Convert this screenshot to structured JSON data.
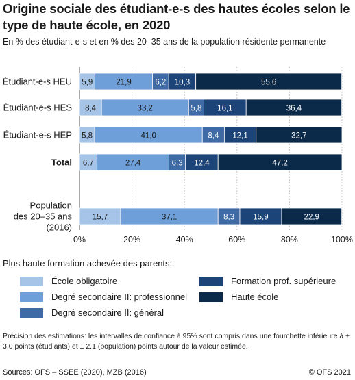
{
  "title": "Origine sociale des étudiant-e-s des hautes écoles selon le type de haute école, en 2020",
  "subtitle": "En % des étudiant-e-s et en % des 20–35 ans de la population résidente permanente",
  "legend_title": "Plus haute formation achevée des parents:",
  "note": "Précision des estimations: les intervalles de confiance à 95% sont compris dans une fourchette inférieure à ± 3.0 points (étudiants) et ± 2.1 (population) points autour de la valeur estimée.",
  "source": "Sources: OFS – SSEE (2020), MZB (2016)",
  "copyright": "© OFS 2021",
  "chart_data": {
    "type": "bar",
    "orientation": "horizontal",
    "stacked": true,
    "categories": [
      "Étudiant-e-s HEU",
      "Étudiant-e-s HES",
      "Étudiant-e-s HEP",
      "Total",
      "Population des 20–35 ans (2016)"
    ],
    "category_lines": [
      [
        "Étudiant-e-s HEU"
      ],
      [
        "Étudiant-e-s HES"
      ],
      [
        "Étudiant-e-s HEP"
      ],
      [
        "Total"
      ],
      [
        "Population",
        "des 20–35 ans",
        "(2016)"
      ]
    ],
    "bold_categories": [
      "Total"
    ],
    "series": [
      {
        "name": "École obligatoire",
        "color": "#a6c4e8",
        "values": [
          5.9,
          8.4,
          5.8,
          6.7,
          15.7
        ],
        "labels": [
          "5,9",
          "8,4",
          "5,8",
          "6,7",
          "15,7"
        ]
      },
      {
        "name": "Degré secondaire II: professionnel",
        "color": "#6f9fd8",
        "values": [
          21.9,
          33.2,
          41.0,
          27.4,
          37.1
        ],
        "labels": [
          "21,9",
          "33,2",
          "41,0",
          "27,4",
          "37,1"
        ]
      },
      {
        "name": "Degré secondaire II: général",
        "color": "#3e6aa6",
        "values": [
          6.2,
          5.8,
          8.4,
          6.3,
          8.3
        ],
        "labels": [
          "6,2",
          "5,8",
          "8,4",
          "6,3",
          "8,3"
        ]
      },
      {
        "name": "Formation prof. supérieure",
        "color": "#1c4478",
        "values": [
          10.3,
          16.1,
          12.1,
          12.4,
          15.9
        ],
        "labels": [
          "10,3",
          "16,1",
          "12,1",
          "12,4",
          "15,9"
        ]
      },
      {
        "name": "Haute école",
        "color": "#0b2a4a",
        "values": [
          55.6,
          36.4,
          32.7,
          47.2,
          22.9
        ],
        "labels": [
          "55,6",
          "36,4",
          "32,7",
          "47,2",
          "22,9"
        ]
      }
    ],
    "xlim": [
      0,
      100
    ],
    "x_ticks": [
      "0%",
      "20%",
      "40%",
      "60%",
      "80%",
      "100%"
    ],
    "grid": true,
    "legend_position": "bottom"
  }
}
